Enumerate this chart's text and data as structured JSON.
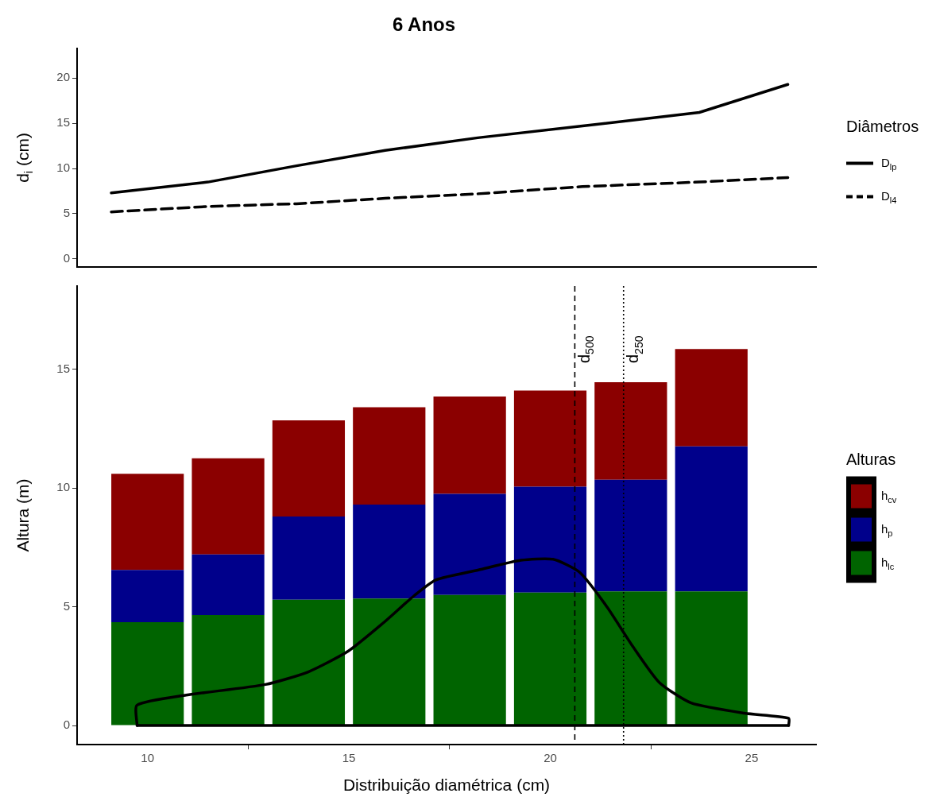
{
  "chart_data": [
    {
      "type": "line",
      "title": "6 Anos",
      "ylabel": "d$_{i}$ (cm)",
      "legend_title": "Diâmetros",
      "legend": "right",
      "grid": false,
      "tick_labels": "y",
      "xlim": [
        8.25,
        26.6
      ],
      "ylim": [
        -0.9,
        23.3
      ],
      "yticks": [
        0,
        5,
        10,
        15,
        20
      ],
      "marker": "none",
      "x": [
        9.1,
        11.5,
        13.7,
        15.9,
        18.2,
        20.8,
        23.7,
        25.9
      ],
      "series": [
        {
          "name": "D$_{lp}$",
          "color": "#000000",
          "line_style": "solid",
          "values": [
            7.3,
            8.5,
            10.3,
            12.0,
            13.4,
            14.7,
            16.2,
            19.3
          ]
        },
        {
          "name": "D$_{l4}$",
          "color": "#000000",
          "line_style": "dashed",
          "values": [
            5.2,
            5.8,
            6.1,
            6.7,
            7.2,
            8.0,
            8.5,
            9.0
          ]
        }
      ]
    },
    {
      "type": "bar",
      "stacked": true,
      "xlabel": "Distribuição diamétrica (cm)",
      "ylabel": "Altura (m)",
      "legend_title": "Alturas",
      "legend": "right",
      "grid": false,
      "xlim": [
        8.25,
        26.6
      ],
      "xticks": [
        10,
        15,
        20,
        25
      ],
      "ylim": [
        -0.8,
        18.5
      ],
      "yticks": [
        0,
        5,
        10,
        15
      ],
      "marker": "none",
      "x": [
        10,
        12,
        14,
        16,
        18,
        20,
        22,
        24
      ],
      "series": [
        {
          "name": "h$_{lc}$",
          "color": "#006400",
          "values": [
            4.35,
            4.65,
            5.3,
            5.35,
            5.5,
            5.6,
            5.65,
            5.65
          ]
        },
        {
          "name": "h$_{p}$",
          "color": "#00008b",
          "values": [
            2.2,
            2.55,
            3.5,
            3.95,
            4.25,
            4.45,
            4.7,
            6.1
          ]
        },
        {
          "name": "h$_{cv}$",
          "color": "#8b0000",
          "values": [
            4.05,
            4.05,
            4.05,
            4.1,
            4.1,
            4.05,
            4.1,
            4.1
          ]
        },
        {
          "type": "line",
          "color": "#000000",
          "line_style": "solid",
          "x": [
            9.74,
            9.74,
            10.96,
            12.93,
            13.99,
            14.98,
            15.84,
            16.63,
            17.16,
            18.22,
            19.27,
            20.07,
            20.73,
            21.39,
            22.05,
            22.71,
            23.5,
            24.82,
            25.92,
            25.92
          ],
          "values": [
            0,
            0.86,
            1.28,
            1.73,
            2.26,
            3.13,
            4.3,
            5.48,
            6.13,
            6.55,
            6.96,
            7.0,
            6.45,
            5.04,
            3.33,
            1.81,
            0.95,
            0.52,
            0.31,
            0
          ]
        },
        {
          "type": "line",
          "color": "#000000",
          "line_style": "solid",
          "x": [
            9.74,
            25.92
          ],
          "values": [
            0,
            0
          ]
        }
      ],
      "ref_lines": [
        {
          "axis": "x",
          "value": 20.61,
          "label": "d$_{500}$",
          "line_style": "dashed",
          "color": "#000000"
        },
        {
          "axis": "x",
          "value": 21.82,
          "label": "d$_{250}$",
          "line_style": "dotted",
          "color": "#000000"
        }
      ]
    }
  ]
}
